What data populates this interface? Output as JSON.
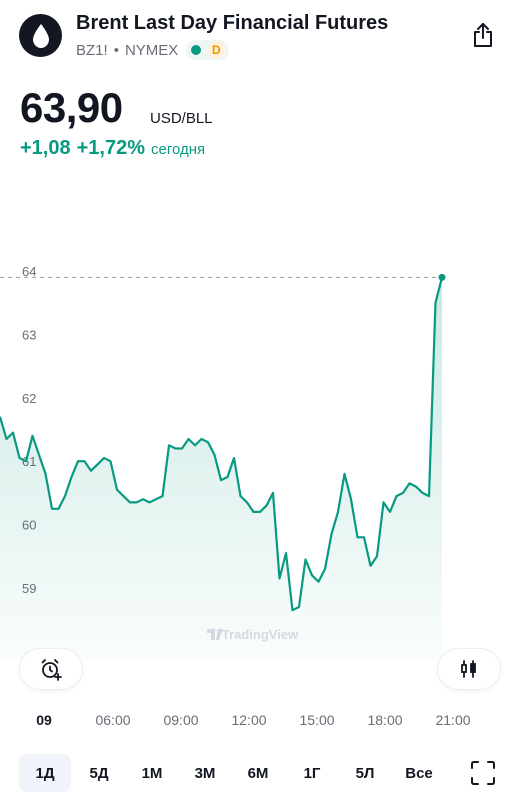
{
  "header": {
    "title": "Brent Last Day Financial Futures",
    "symbol": "BZ1!",
    "separator": "•",
    "exchange": "NYMEX",
    "delay_badge": "D",
    "logo_icon": "oil-drop-icon",
    "share_icon": "share-icon"
  },
  "quote": {
    "price": "63,90",
    "currency": "USD/BLL",
    "change_abs": "+1,08",
    "change_pct": "+1,72%",
    "change_period": "сегодня"
  },
  "colors": {
    "line": "#089981",
    "positive": "#089981",
    "delay_badge": "#f29100",
    "text": "#131722",
    "muted": "#6a6d78"
  },
  "chart_data": {
    "type": "area",
    "y_ticks": [
      "64",
      "63",
      "62",
      "61",
      "60",
      "59"
    ],
    "ylim": [
      58.5,
      64.2
    ],
    "last_value": 63.9,
    "watermark": "TradingView",
    "x_labels": [
      "09",
      "06:00",
      "09:00",
      "12:00",
      "15:00",
      "18:00",
      "21:00"
    ],
    "series": [
      {
        "values": [
          61.7,
          61.35,
          61.45,
          61.05,
          61.0,
          61.4,
          61.1,
          60.8,
          60.25,
          60.25,
          60.45,
          60.75,
          61.0,
          61.0,
          60.85,
          60.95,
          61.05,
          61.0,
          60.55,
          60.45,
          60.35,
          60.35,
          60.4,
          60.35,
          60.4,
          60.45,
          61.25,
          61.2,
          61.2,
          61.35,
          61.25,
          61.35,
          61.3,
          61.1,
          60.7,
          60.75,
          61.05,
          60.45,
          60.35,
          60.2,
          60.2,
          60.3,
          60.5,
          59.15,
          59.55,
          58.65,
          58.7,
          59.45,
          59.2,
          59.1,
          59.3,
          59.85,
          60.2,
          60.8,
          60.4,
          59.8,
          59.8,
          59.35,
          59.5,
          60.35,
          60.2,
          60.45,
          60.5,
          60.65,
          60.6,
          60.5,
          60.45,
          63.5,
          63.9
        ]
      }
    ]
  },
  "chart_controls": {
    "alert_icon": "alarm-clock-plus-icon",
    "chart_type_icon": "candlestick-icon"
  },
  "ranges": [
    {
      "label": "1Д",
      "active": true
    },
    {
      "label": "5Д",
      "active": false
    },
    {
      "label": "1М",
      "active": false
    },
    {
      "label": "3М",
      "active": false
    },
    {
      "label": "6М",
      "active": false
    },
    {
      "label": "1Г",
      "active": false
    },
    {
      "label": "5Л",
      "active": false
    },
    {
      "label": "Все",
      "active": false
    }
  ],
  "fullscreen_icon": "fullscreen-icon"
}
